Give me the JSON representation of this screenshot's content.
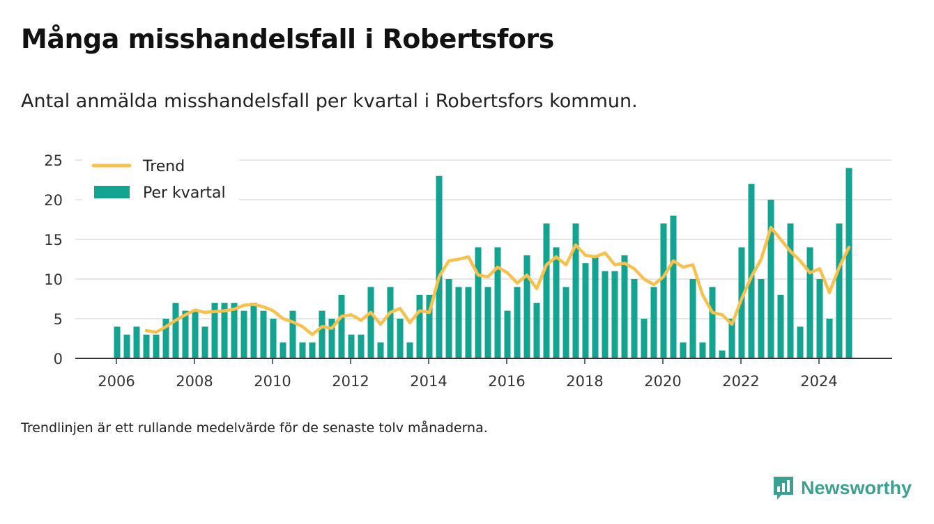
{
  "header": {
    "title": "Många misshandelsfall i Robertsfors",
    "subtitle": "Antal anmälda misshandelsfall per kvartal i Robertsfors kommun."
  },
  "footer": {
    "note": "Trendlinjen är ett rullande medelvärde för de senaste tolv månaderna.",
    "brand": "Newsworthy"
  },
  "colors": {
    "bar": "#13a391",
    "trend": "#f7c14c",
    "grid": "#dddddd",
    "axis": "#333333",
    "brand": "#3aa192"
  },
  "chart_data": {
    "type": "bar",
    "title": "Många misshandelsfall i Robertsfors",
    "ylim": [
      0,
      25
    ],
    "yticks": [
      0,
      5,
      10,
      15,
      20,
      25
    ],
    "xticks": [
      "2006",
      "2008",
      "2010",
      "2012",
      "2014",
      "2016",
      "2018",
      "2020",
      "2022",
      "2024"
    ],
    "grid": true,
    "legend_position": "top-left",
    "legend": [
      "Trend",
      "Per kvartal"
    ],
    "quarters": [
      "2006 Q1",
      "2006 Q2",
      "2006 Q3",
      "2006 Q4",
      "2007 Q1",
      "2007 Q2",
      "2007 Q3",
      "2007 Q4",
      "2008 Q1",
      "2008 Q2",
      "2008 Q3",
      "2008 Q4",
      "2009 Q1",
      "2009 Q2",
      "2009 Q3",
      "2009 Q4",
      "2010 Q1",
      "2010 Q2",
      "2010 Q3",
      "2010 Q4",
      "2011 Q1",
      "2011 Q2",
      "2011 Q3",
      "2011 Q4",
      "2012 Q1",
      "2012 Q2",
      "2012 Q3",
      "2012 Q4",
      "2013 Q1",
      "2013 Q2",
      "2013 Q3",
      "2013 Q4",
      "2014 Q1",
      "2014 Q2",
      "2014 Q3",
      "2014 Q4",
      "2015 Q1",
      "2015 Q2",
      "2015 Q3",
      "2015 Q4",
      "2016 Q1",
      "2016 Q2",
      "2016 Q3",
      "2016 Q4",
      "2017 Q1",
      "2017 Q2",
      "2017 Q3",
      "2017 Q4",
      "2018 Q1",
      "2018 Q2",
      "2018 Q3",
      "2018 Q4",
      "2019 Q1",
      "2019 Q2",
      "2019 Q3",
      "2019 Q4",
      "2020 Q1",
      "2020 Q2",
      "2020 Q3",
      "2020 Q4",
      "2021 Q1",
      "2021 Q2",
      "2021 Q3",
      "2021 Q4",
      "2022 Q1",
      "2022 Q2",
      "2022 Q3",
      "2022 Q4",
      "2023 Q1",
      "2023 Q2",
      "2023 Q3",
      "2023 Q4",
      "2024 Q1",
      "2024 Q2",
      "2024 Q3",
      "2024 Q4"
    ],
    "series": [
      {
        "name": "Per kvartal",
        "values": [
          4,
          3,
          4,
          3,
          3,
          5,
          7,
          6,
          6,
          4,
          7,
          7,
          7,
          6,
          7,
          6,
          5,
          2,
          6,
          2,
          2,
          6,
          5,
          8,
          3,
          3,
          9,
          2,
          9,
          5,
          2,
          8,
          8,
          23,
          10,
          9,
          9,
          14,
          9,
          14,
          6,
          9,
          13,
          7,
          17,
          14,
          9,
          17,
          12,
          13,
          11,
          11,
          13,
          10,
          5,
          9,
          17,
          18,
          2,
          10,
          2,
          9,
          1,
          5,
          14,
          22,
          10,
          20,
          8,
          17,
          4,
          14,
          10,
          5,
          17,
          24
        ]
      },
      {
        "name": "Trend",
        "values": [
          null,
          null,
          null,
          3.5,
          3.3,
          4.0,
          4.8,
          5.5,
          6.1,
          5.8,
          5.9,
          6.0,
          6.2,
          6.7,
          6.8,
          6.5,
          6.0,
          5.0,
          4.6,
          4.0,
          3.0,
          4.0,
          3.8,
          5.3,
          5.5,
          4.8,
          5.8,
          4.3,
          5.8,
          6.3,
          4.5,
          6.0,
          5.8,
          10.3,
          12.3,
          12.5,
          12.8,
          10.5,
          10.3,
          11.5,
          10.8,
          9.5,
          10.5,
          8.8,
          11.8,
          12.8,
          11.8,
          14.3,
          13.0,
          12.8,
          13.3,
          11.8,
          12.0,
          11.3,
          10.0,
          9.3,
          10.3,
          12.3,
          11.5,
          11.8,
          8.0,
          5.8,
          5.5,
          4.3,
          7.5,
          10.3,
          12.5,
          16.5,
          15.0,
          13.5,
          12.3,
          10.8,
          11.3,
          8.3,
          11.5,
          14.0
        ]
      }
    ]
  }
}
